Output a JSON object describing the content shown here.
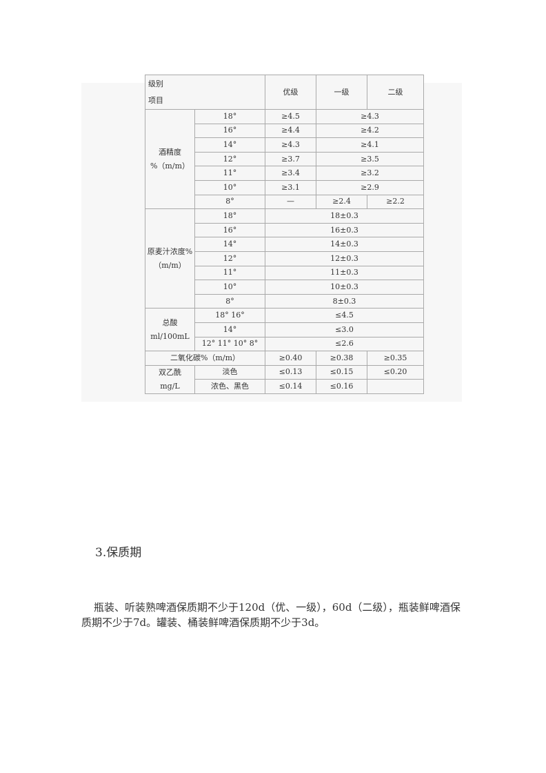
{
  "table": {
    "header": {
      "level_label": "级别",
      "item_label": "项目",
      "grades": [
        "优级",
        "一级",
        "二级"
      ]
    },
    "alcohol": {
      "label": "酒精度",
      "unit": "%（m/m）",
      "rows": [
        {
          "deg": "18°",
          "premium": "≥4.5",
          "other": "≥4.3"
        },
        {
          "deg": "16°",
          "premium": "≥4.4",
          "other": "≥4.2"
        },
        {
          "deg": "14°",
          "premium": "≥4.3",
          "other": "≥4.1"
        },
        {
          "deg": "12°",
          "premium": "≥3.7",
          "other": "≥3.5"
        },
        {
          "deg": "11°",
          "premium": "≥3.4",
          "other": "≥3.2"
        },
        {
          "deg": "10°",
          "premium": "≥3.1",
          "other": "≥2.9"
        }
      ],
      "row8": {
        "deg": "8°",
        "premium": "—",
        "first": "≥2.4",
        "second": "≥2.2"
      }
    },
    "wort": {
      "label": "原麦汁浓度%",
      "unit": "（m/m）",
      "rows": [
        {
          "deg": "18°",
          "value": "18±0.3"
        },
        {
          "deg": "16°",
          "value": "16±0.3"
        },
        {
          "deg": "14°",
          "value": "14±0.3"
        },
        {
          "deg": "12°",
          "value": "12±0.3"
        },
        {
          "deg": "11°",
          "value": "11±0.3"
        },
        {
          "deg": "10°",
          "value": "10±0.3"
        },
        {
          "deg": "8°",
          "value": "8±0.3"
        }
      ]
    },
    "acid": {
      "label": "总酸",
      "unit": "ml/100mL",
      "rows": [
        {
          "deg": "18° 16°",
          "value": "≤4.5"
        },
        {
          "deg": "14°",
          "value": "≤3.0"
        },
        {
          "deg": "12° 11° 10° 8°",
          "value": "≤2.6"
        }
      ]
    },
    "co2": {
      "label": "二氧化碳%（m/m）",
      "values": [
        "≥0.40",
        "≥0.38",
        "≥0.35"
      ]
    },
    "diacetyl": {
      "label": "双乙酰",
      "unit": "mg/L",
      "rows": [
        {
          "type": "淡色",
          "values": [
            "≤0.13",
            "≤0.15",
            "≤0.20"
          ]
        },
        {
          "type": "浓色、黑色",
          "values": [
            "≤0.14",
            "≤0.16",
            ""
          ]
        }
      ]
    }
  },
  "section": {
    "title": "3.保质期",
    "paragraph": "瓶装、听装熟啤酒保质期不少于120d（优、一级），60d（二级），瓶装鲜啤酒保质期不少于7d。罐装、桶装鲜啤酒保质期不少于3d。"
  }
}
